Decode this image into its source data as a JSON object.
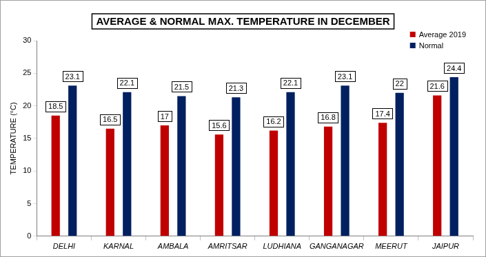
{
  "chart_data": {
    "type": "bar",
    "title": "AVERAGE & NORMAL MAX. TEMPERATURE IN DECEMBER",
    "y_label": "TEMPERATURE (°C)",
    "categories": [
      "DELHI",
      "KARNAL",
      "AMBALA",
      "AMRITSAR",
      "LUDHIANA",
      "GANGANAGAR",
      "MEERUT",
      "JAIPUR"
    ],
    "series": [
      {
        "name": "Average 2019",
        "color": "#c00000",
        "values": [
          18.5,
          16.5,
          17,
          15.6,
          16.2,
          16.8,
          17.4,
          21.6
        ]
      },
      {
        "name": "Normal",
        "color": "#002060",
        "values": [
          23.1,
          22.1,
          21.5,
          21.3,
          22.1,
          23.1,
          22,
          24.4
        ]
      }
    ],
    "ylim": [
      0,
      30
    ],
    "yticks": [
      0,
      5,
      10,
      15,
      20,
      25,
      30
    ],
    "grid": false,
    "legend": "top-right",
    "data_labels": true
  }
}
